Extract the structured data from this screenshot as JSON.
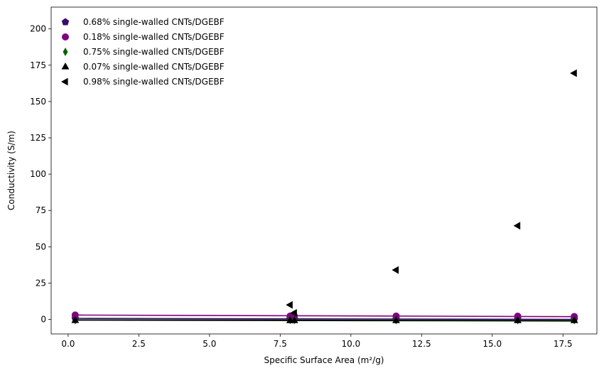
{
  "chart_data": {
    "type": "scatter",
    "xlabel": "Specific Surface Area (m²/g)",
    "ylabel": "Conductivity (S/m)",
    "xlim": [
      -0.6,
      18.7
    ],
    "ylim": [
      -10,
      215
    ],
    "xticks": [
      0.0,
      2.5,
      5.0,
      7.5,
      10.0,
      12.5,
      15.0,
      17.5
    ],
    "xtick_labels": [
      "0.0",
      "2.5",
      "5.0",
      "7.5",
      "10.0",
      "12.5",
      "15.0",
      "17.5"
    ],
    "yticks": [
      0,
      25,
      50,
      75,
      100,
      125,
      150,
      175,
      200
    ],
    "ytick_labels": [
      "0",
      "25",
      "50",
      "75",
      "100",
      "125",
      "150",
      "175",
      "200"
    ],
    "grid": false,
    "legend_position": "top-left",
    "series": [
      {
        "name": "0.68% single-walled CNTs/DGEBF",
        "marker": "pentagon",
        "color": "#3d0a6e",
        "x": [
          0.25,
          7.85,
          8.0,
          11.6,
          15.9,
          17.9
        ],
        "y": [
          0.6,
          0.3,
          0.3,
          0.2,
          0.1,
          0.0
        ],
        "fit": [
          [
            0.25,
            0.7
          ],
          [
            17.9,
            0.0
          ]
        ]
      },
      {
        "name": "0.18% single-walled CNTs/DGEBF",
        "marker": "circle",
        "color": "#800080",
        "x": [
          0.25,
          7.85,
          8.0,
          11.6,
          15.9,
          17.9
        ],
        "y": [
          3.0,
          2.3,
          2.4,
          2.3,
          2.2,
          2.0
        ],
        "fit": [
          [
            0.25,
            3.0
          ],
          [
            17.9,
            1.9
          ]
        ]
      },
      {
        "name": "0.75% single-walled CNTs/DGEBF",
        "marker": "diamond",
        "color": "#006400",
        "x": [
          0.25,
          7.85,
          8.0,
          11.6,
          15.9,
          17.9
        ],
        "y": [
          -0.5,
          -0.4,
          -0.4,
          -0.5,
          -0.5,
          -0.5
        ],
        "fit": [
          [
            0.25,
            -0.3
          ],
          [
            17.9,
            -0.6
          ]
        ]
      },
      {
        "name": "0.07% single-walled CNTs/DGEBF",
        "marker": "triangle-up",
        "color": "#000000",
        "x": [
          0.25,
          7.85,
          8.0,
          11.6,
          15.9,
          17.9
        ],
        "y": [
          -0.7,
          -0.8,
          -0.8,
          -0.8,
          -0.8,
          -0.8
        ],
        "fit": [
          [
            0.25,
            -0.5
          ],
          [
            17.9,
            -1.1
          ]
        ]
      },
      {
        "name": "0.98% single-walled CNTs/DGEBF",
        "marker": "triangle-left",
        "color": "#000000",
        "x": [
          7.85,
          8.0,
          11.6,
          15.9,
          17.9
        ],
        "y": [
          10.0,
          4.5,
          34.0,
          64.5,
          169.5
        ],
        "fit": null
      }
    ]
  }
}
